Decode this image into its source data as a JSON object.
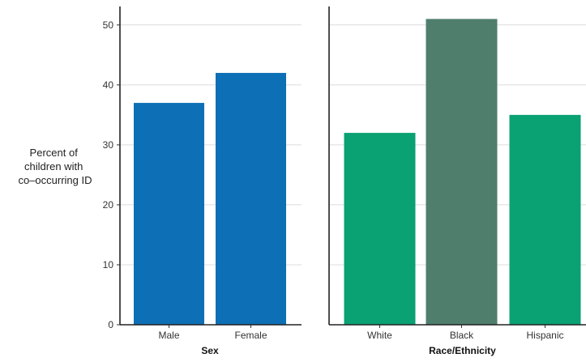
{
  "chart_data": {
    "type": "bar",
    "ylabel": [
      "Percent of",
      "children with",
      "co–occurring ID"
    ],
    "ylim": [
      0,
      52
    ],
    "yticks": [
      0,
      10,
      20,
      30,
      40,
      50
    ],
    "grid": true,
    "panels": [
      {
        "xlabel": "Sex",
        "categories": [
          "Male",
          "Female"
        ],
        "values": [
          37,
          42
        ],
        "colors": [
          "#0d6fb5",
          "#0d6fb5"
        ]
      },
      {
        "xlabel": "Race/Ethnicity",
        "categories": [
          "White",
          "Black",
          "Hispanic"
        ],
        "values": [
          32,
          51,
          35
        ],
        "colors": [
          "#0aa173",
          "#4f7e6d",
          "#0aa173"
        ]
      }
    ]
  }
}
